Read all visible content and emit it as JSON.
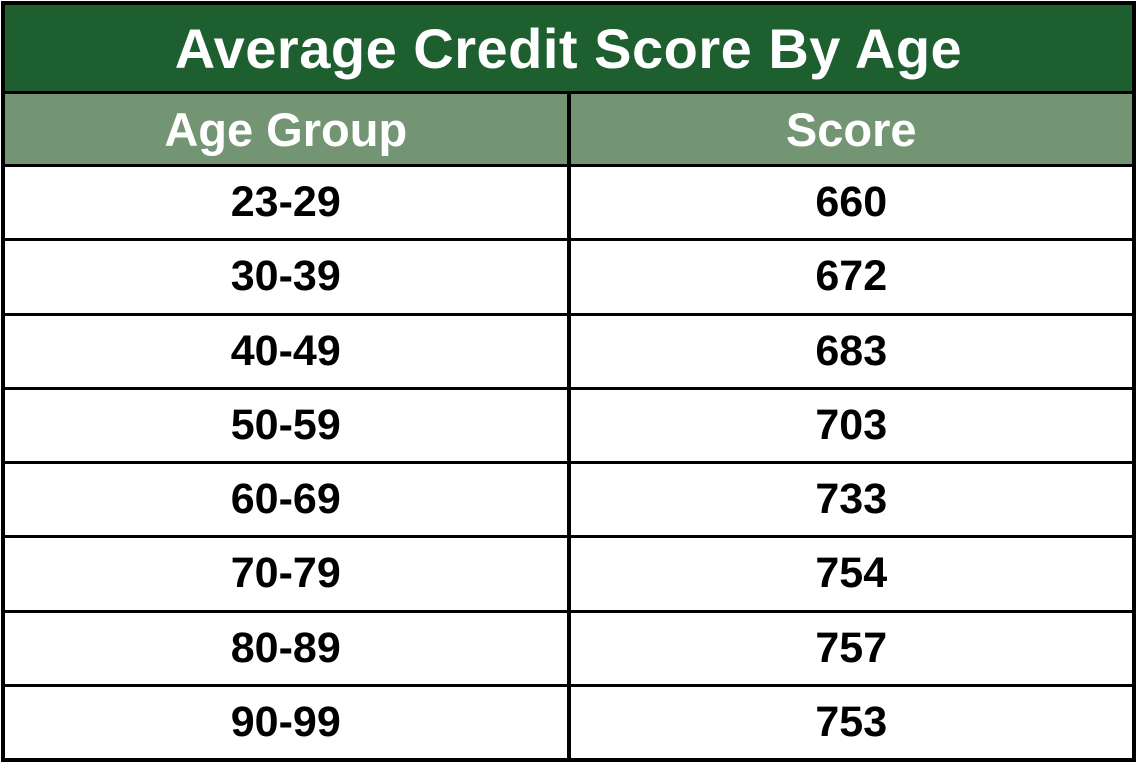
{
  "table": {
    "title": "Average Credit Score By Age",
    "columns": {
      "age_group": "Age Group",
      "score": "Score"
    },
    "rows": [
      {
        "age_group": "23-29",
        "score": "660"
      },
      {
        "age_group": "30-39",
        "score": "672"
      },
      {
        "age_group": "40-49",
        "score": "683"
      },
      {
        "age_group": "50-59",
        "score": "703"
      },
      {
        "age_group": "60-69",
        "score": "733"
      },
      {
        "age_group": "70-79",
        "score": "754"
      },
      {
        "age_group": "80-89",
        "score": "757"
      },
      {
        "age_group": "90-99",
        "score": "753"
      }
    ]
  },
  "colors": {
    "title_bg": "#1e5f30",
    "header_bg": "#749573",
    "title_text": "#ffffff",
    "header_text": "#ffffff",
    "cell_text": "#000000",
    "row_bg": "#ffffff",
    "border_color": "#000000"
  },
  "chart_data": {
    "type": "table",
    "title": "Average Credit Score By Age",
    "columns": [
      "Age Group",
      "Score"
    ],
    "categories": [
      "23-29",
      "30-39",
      "40-49",
      "50-59",
      "60-69",
      "70-79",
      "80-89",
      "90-99"
    ],
    "values": [
      660,
      672,
      683,
      703,
      733,
      754,
      757,
      753
    ]
  }
}
